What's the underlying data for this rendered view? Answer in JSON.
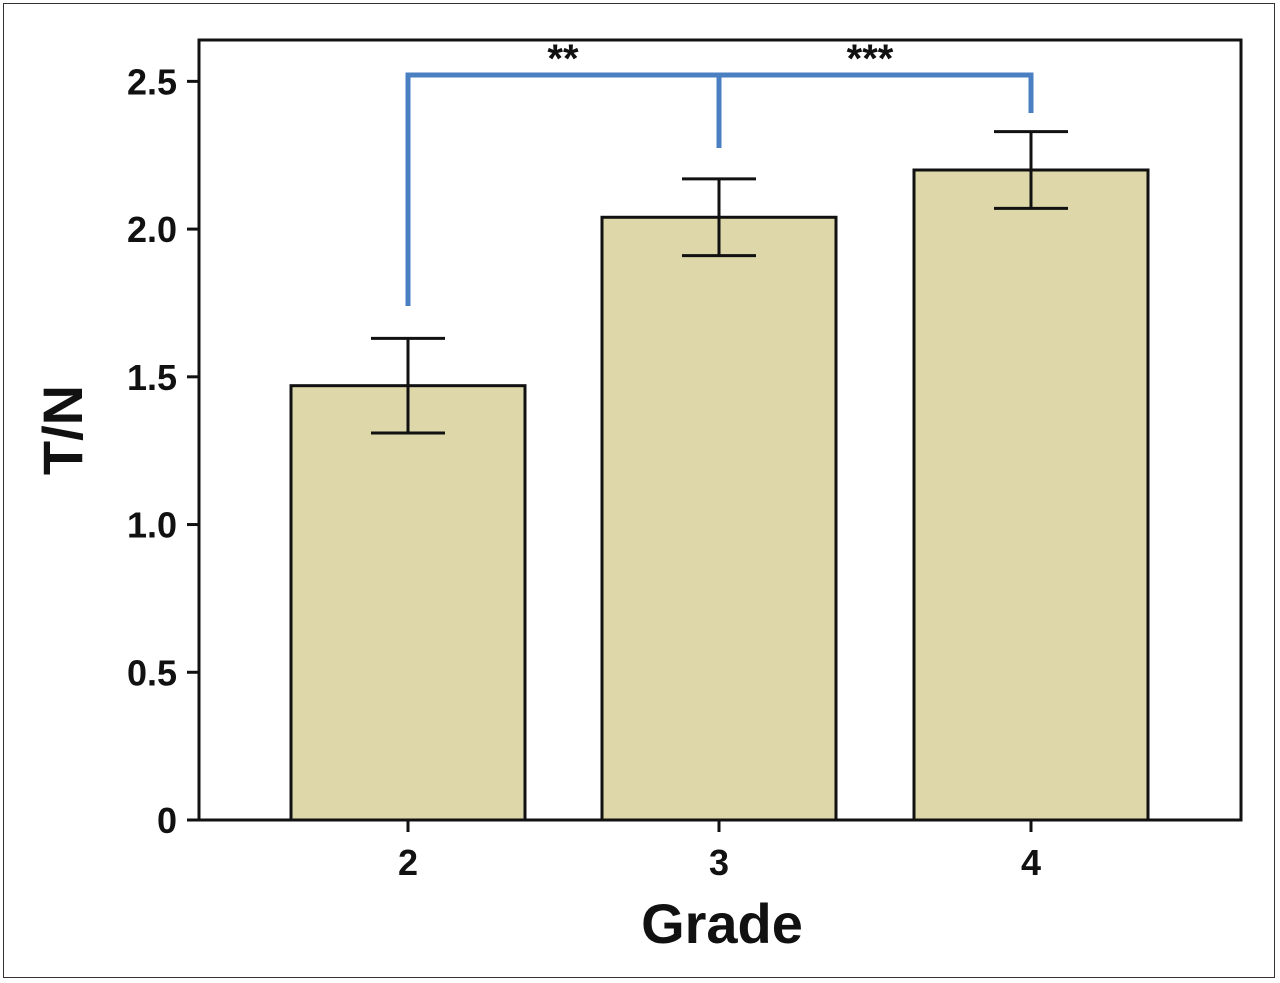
{
  "chart_data": {
    "type": "bar",
    "categories": [
      "2",
      "3",
      "4"
    ],
    "values": [
      1.47,
      2.04,
      2.2
    ],
    "errors": [
      0.16,
      0.13,
      0.13
    ],
    "xlabel": "Grade",
    "ylabel": "T/N",
    "ylim": [
      0,
      2.64
    ],
    "yticks": [
      0,
      0.5,
      1.0,
      1.5,
      2.0,
      2.5
    ],
    "ytick_labels": [
      "0",
      "0.5",
      "1.0",
      "1.5",
      "2.0",
      "2.5"
    ],
    "grid": false,
    "legend": "none",
    "significance": [
      {
        "from": "2",
        "to": "3",
        "label": "**"
      },
      {
        "from": "3",
        "to": "4",
        "label": "***"
      }
    ],
    "colors": {
      "bar_fill": "#ddd7aa",
      "bar_stroke": "#111111",
      "bracket": "#4a7fc1",
      "error_bar": "#111111"
    }
  }
}
